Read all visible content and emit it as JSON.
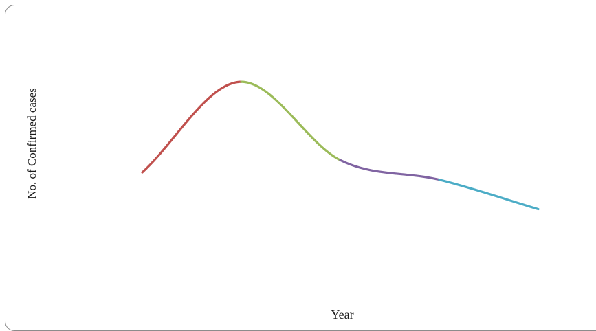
{
  "chart_data": {
    "type": "line",
    "title": "",
    "xlabel": "Year",
    "ylabel": "No. of Confirmed cases",
    "x": [
      1,
      2,
      3,
      4,
      5
    ],
    "y": [
      5.3,
      9.0,
      5.8,
      5.0,
      3.8
    ],
    "ylim": [
      0,
      11.5
    ],
    "xlim": [
      0,
      6
    ],
    "grid": false,
    "legend": "none",
    "segment_colors": [
      "#c0504d",
      "#9bbb59",
      "#8064a2",
      "#4bacc6"
    ]
  }
}
